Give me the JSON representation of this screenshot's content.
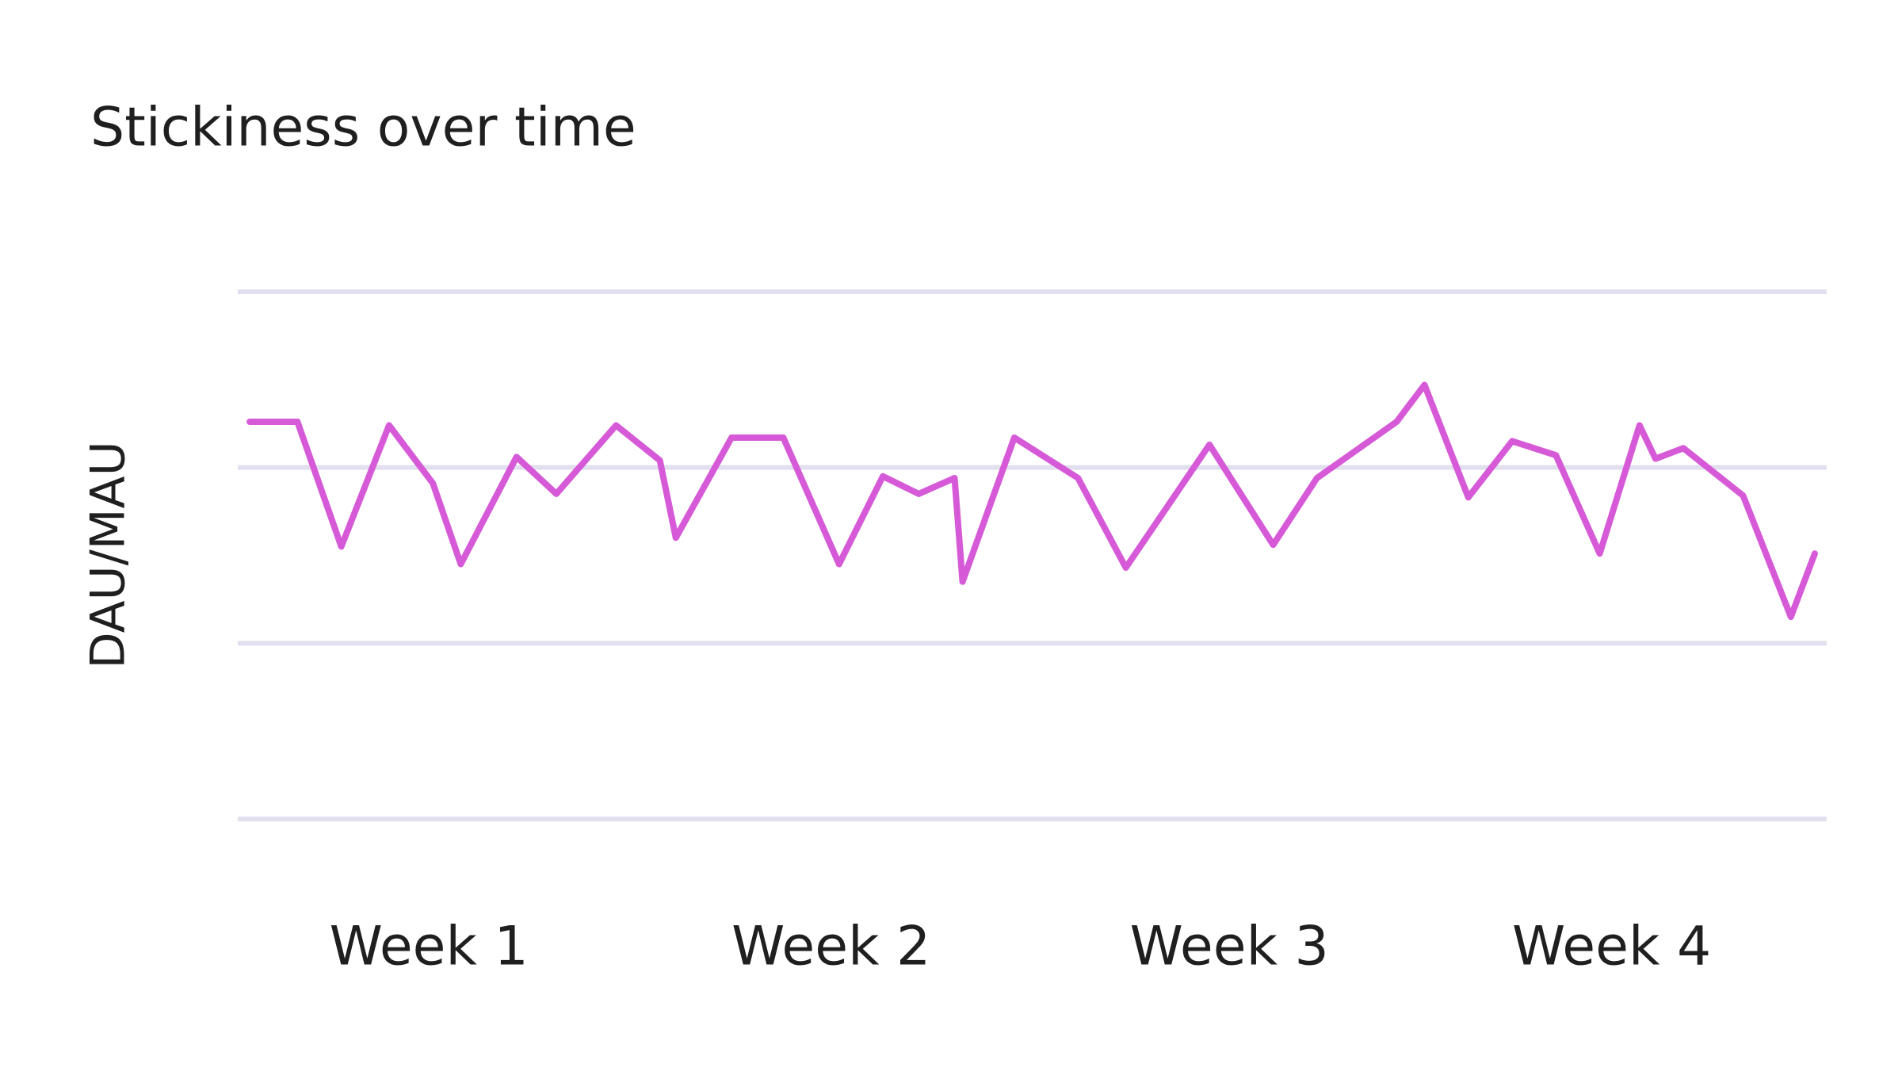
{
  "chart_data": {
    "type": "line",
    "title": "Stickiness over time",
    "y_label": "DAU/MAU",
    "x": [
      0.55,
      0.67,
      0.78,
      0.9,
      1.01,
      1.08,
      1.22,
      1.32,
      1.47,
      1.58,
      1.62,
      1.76,
      1.89,
      2.03,
      2.14,
      2.23,
      2.32,
      2.34,
      2.47,
      2.63,
      2.75,
      2.96,
      3.12,
      3.23,
      3.43,
      3.5,
      3.61,
      3.72,
      3.83,
      3.94,
      4.04,
      4.08,
      4.15,
      4.3,
      4.42,
      4.48
    ],
    "series": [
      {
        "color": "#d65ad8",
        "values": [
          2.26,
          2.26,
          1.55,
          2.24,
          1.91,
          1.45,
          2.06,
          1.85,
          2.24,
          2.04,
          1.6,
          2.17,
          2.17,
          1.45,
          1.95,
          1.85,
          1.94,
          1.35,
          2.17,
          1.94,
          1.43,
          2.13,
          1.56,
          1.94,
          2.26,
          2.47,
          1.83,
          2.15,
          2.07,
          1.51,
          2.24,
          2.05,
          2.11,
          1.84,
          1.15,
          1.51
        ]
      }
    ],
    "xlim": [
      0.52,
      4.51
    ],
    "xticks": [
      {
        "value": 1,
        "label": "Week 1"
      },
      {
        "value": 2.01,
        "label": "Week 2"
      },
      {
        "value": 3.01,
        "label": "Week 3"
      },
      {
        "value": 3.97,
        "label": "Week 4"
      }
    ],
    "ylim": [
      0,
      3
    ],
    "gridlines": [
      0,
      1,
      2,
      3
    ],
    "grid_color": "#e2dfee"
  }
}
